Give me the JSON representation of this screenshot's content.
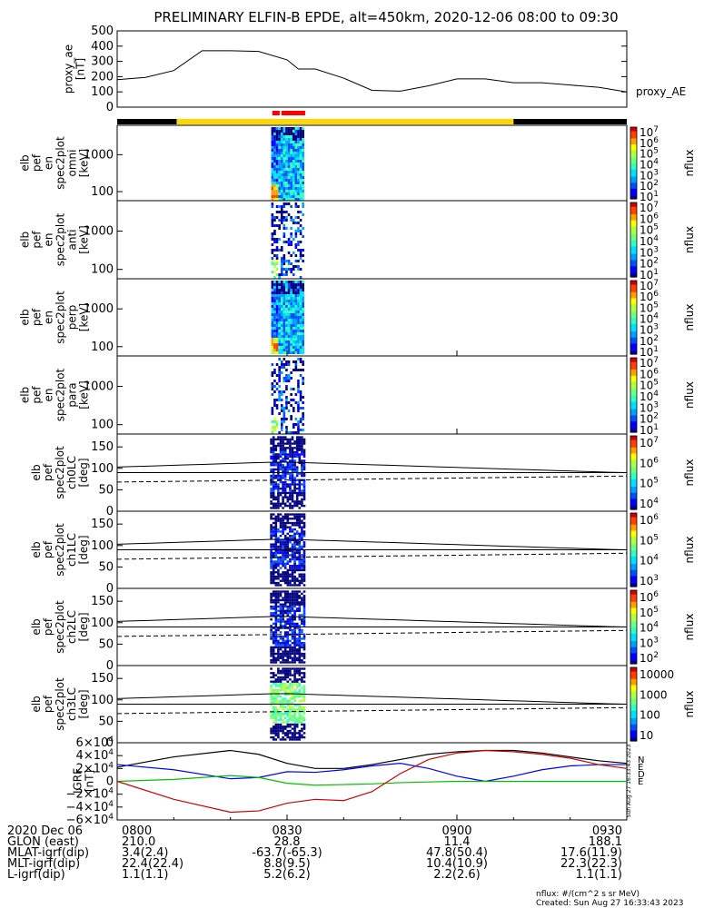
{
  "title": "PRELIMINARY ELFIN-B EPDE, alt=450km, 2020-12-06 08:00 to 09:30",
  "colors": {
    "fg": "#000000",
    "bg": "#ffffff",
    "yellow": "#ffd700",
    "red": "#ff0000",
    "black": "#000000",
    "lineBlue": "#0000ff",
    "lineGreen": "#00c000",
    "lineRed": "#d00000"
  },
  "ae_panel": {
    "ylabel": [
      "proxy_ae",
      "[nT]"
    ],
    "yticks": [
      "500",
      "400",
      "300",
      "200",
      "100",
      "0"
    ],
    "legend": "proxy_AE",
    "chart_data": {
      "type": "line",
      "x_minutes": [
        0,
        5,
        10,
        15,
        20,
        25,
        30,
        32,
        35,
        40,
        45,
        50,
        55,
        60,
        65,
        70,
        75,
        80,
        85,
        90
      ],
      "values": [
        180,
        195,
        240,
        370,
        370,
        365,
        310,
        250,
        250,
        190,
        110,
        105,
        140,
        185,
        185,
        160,
        160,
        145,
        130,
        100
      ],
      "ylim": [
        0,
        500
      ],
      "xlim_minutes": [
        0,
        90
      ]
    }
  },
  "status_bar": {
    "segments": [
      {
        "color": "black",
        "from_min": 0,
        "to_min": 10.5
      },
      {
        "color": "yellow",
        "from_min": 10.5,
        "to_min": 70
      },
      {
        "color": "black",
        "from_min": 70,
        "to_min": 90
      }
    ],
    "red_segments": [
      {
        "from_min": 27.4,
        "to_min": 28.7
      },
      {
        "from_min": 29.0,
        "to_min": 33.2
      }
    ]
  },
  "energy_panels": [
    {
      "ylabel": [
        "elb",
        "pef",
        "en",
        "spec2plot",
        "omni",
        "[keV]"
      ],
      "yticks": [
        "1000",
        "100"
      ],
      "cb_label": "nflux",
      "cb_ticks": [
        "10^7",
        "10^6",
        "10^5",
        "10^4",
        "10^3",
        "10^2",
        "10^1"
      ]
    },
    {
      "ylabel": [
        "elb",
        "pef",
        "en",
        "spec2plot",
        "anti",
        "[keV]"
      ],
      "yticks": [
        "1000",
        "100"
      ],
      "cb_label": "nflux",
      "cb_ticks": [
        "10^7",
        "10^6",
        "10^5",
        "10^4",
        "10^3",
        "10^2",
        "10^1"
      ]
    },
    {
      "ylabel": [
        "elb",
        "pef",
        "en",
        "spec2plot",
        "perp",
        "[keV]"
      ],
      "yticks": [
        "1000",
        "100"
      ],
      "cb_label": "nflux",
      "cb_ticks": [
        "10^7",
        "10^6",
        "10^5",
        "10^4",
        "10^3",
        "10^2",
        "10^1"
      ]
    },
    {
      "ylabel": [
        "elb",
        "pef",
        "en",
        "spec2plot",
        "para",
        "[keV]"
      ],
      "yticks": [
        "1000",
        "100"
      ],
      "cb_label": "nflux",
      "cb_ticks": [
        "10^7",
        "10^6",
        "10^5",
        "10^4",
        "10^3",
        "10^2",
        "10^1"
      ]
    }
  ],
  "pitch_panels": [
    {
      "ylabel": [
        "elb",
        "pef",
        "spec2plot",
        "ch0LC",
        "[deg]"
      ],
      "yticks": [
        "150",
        "100",
        "50",
        "0"
      ],
      "cb_label": "nflux",
      "cb_ticks": [
        "10^7",
        "10^6",
        "10^5",
        "10^4"
      ]
    },
    {
      "ylabel": [
        "elb",
        "pef",
        "spec2plot",
        "ch1LC",
        "[deg]"
      ],
      "yticks": [
        "150",
        "100",
        "50",
        "0"
      ],
      "cb_label": "nflux",
      "cb_ticks": [
        "10^6",
        "10^5",
        "10^4",
        "10^3"
      ]
    },
    {
      "ylabel": [
        "elb",
        "pef",
        "spec2plot",
        "ch2LC",
        "[deg]"
      ],
      "yticks": [
        "150",
        "100",
        "50",
        "0"
      ],
      "cb_label": "nflux",
      "cb_ticks": [
        "10^6",
        "10^5",
        "10^4",
        "10^3",
        "10^2"
      ]
    },
    {
      "ylabel": [
        "elb",
        "pef",
        "spec2plot",
        "ch3LC",
        "[deg]"
      ],
      "yticks": [
        "150",
        "100",
        "50",
        "0"
      ],
      "cb_label": "nflux",
      "cb_ticks": [
        "10000",
        "1000",
        "100",
        "10"
      ]
    }
  ],
  "igrf_panel": {
    "ylabel": [
      "IGRF",
      "[nT]"
    ],
    "yticks": [
      {
        "m": "6",
        "e": "4",
        "s": ""
      },
      {
        "m": "4",
        "e": "4",
        "s": ""
      },
      {
        "m": "2",
        "e": "4",
        "s": ""
      },
      {
        "m": "0",
        "e": "",
        "s": ""
      },
      {
        "m": "2",
        "e": "4",
        "s": "−"
      },
      {
        "m": "4",
        "e": "4",
        "s": "−"
      },
      {
        "m": "6",
        "e": "4",
        "s": "−"
      }
    ],
    "legend": [
      "N",
      "E",
      "D",
      "E"
    ],
    "stamp": "Sun Aug 27 16:33:43 2023",
    "chart_data": {
      "type": "line",
      "x_minutes": [
        0,
        10,
        20,
        25,
        30,
        35,
        40,
        45,
        50,
        55,
        60,
        65,
        70,
        75,
        80,
        85,
        90
      ],
      "series": [
        {
          "color": "black",
          "values": [
            22000,
            38000,
            48000,
            42000,
            28000,
            20000,
            20000,
            26000,
            34000,
            42000,
            46000,
            48000,
            48000,
            44000,
            38000,
            32000,
            28000
          ]
        },
        {
          "color": "blue",
          "values": [
            26000,
            18000,
            4000,
            6000,
            15000,
            14000,
            18000,
            24000,
            28000,
            20000,
            8000,
            0,
            8000,
            18000,
            24000,
            26000,
            26000
          ]
        },
        {
          "color": "green",
          "values": [
            0,
            3000,
            9000,
            6000,
            -3000,
            -6000,
            -5000,
            -4000,
            -2000,
            -1000,
            0,
            0,
            0,
            0,
            0,
            0,
            0
          ]
        },
        {
          "color": "red",
          "values": [
            0,
            -28000,
            -48000,
            -46000,
            -34000,
            -28000,
            -30000,
            -16000,
            12000,
            34000,
            44000,
            48000,
            46000,
            42000,
            36000,
            26000,
            20000
          ]
        }
      ],
      "ylim": [
        -60000,
        60000
      ]
    }
  },
  "x_axis": {
    "tick_labels": [
      "0800",
      "0830",
      "0900",
      "0930"
    ],
    "rows": [
      {
        "label": "2020 Dec 06",
        "values": [
          "0800",
          "0830",
          "0900",
          "0930"
        ]
      },
      {
        "label": "GLON (east)",
        "values": [
          "210.0",
          "28.8",
          "11.4",
          "188.1"
        ]
      },
      {
        "label": "MLAT-igrf(dip)",
        "values": [
          "3.4(2.4)",
          "-63.7(-65.3)",
          "47.8(50.4)",
          "17.6(11.9)"
        ]
      },
      {
        "label": "MLT-igrf(dip)",
        "values": [
          "22.4(22.4)",
          "8.8(9.5)",
          "10.4(10.9)",
          "22.3(22.3)"
        ]
      },
      {
        "label": "L-igrf(dip)",
        "values": [
          "1.1(1.1)",
          "5.2(6.2)",
          "2.2(2.6)",
          "1.1(1.1)"
        ]
      }
    ]
  },
  "footer": {
    "units": "nflux: #/(cm^2 s sr MeV)",
    "created": "Created: Sun Aug 27 16:33:43 2023"
  }
}
